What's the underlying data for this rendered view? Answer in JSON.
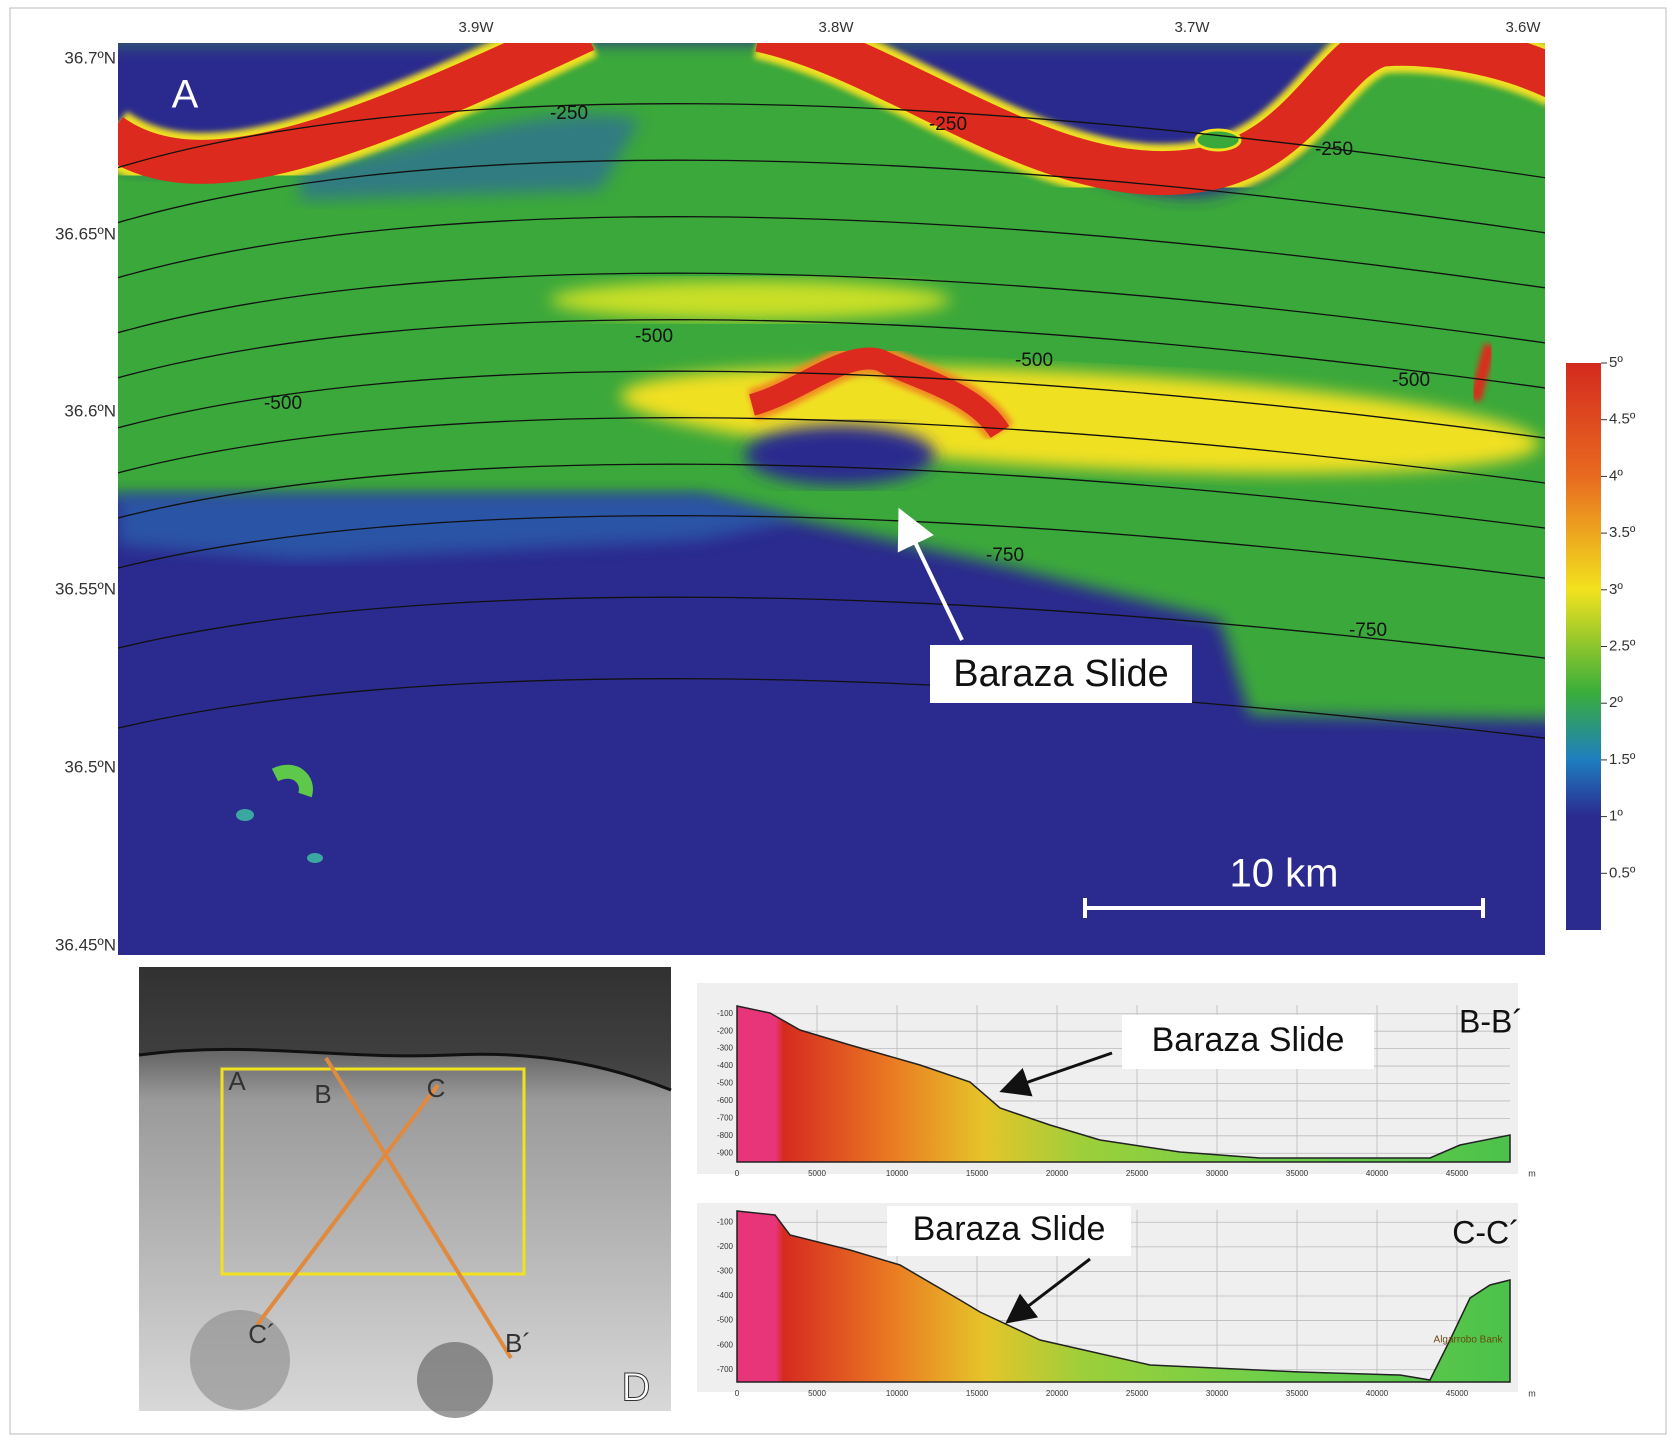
{
  "panel_a": {
    "label": "A",
    "lon_labels": [
      "3.9W",
      "3.8W",
      "3.7W",
      "3.6W"
    ],
    "lat_labels": [
      "36.7ºN",
      "36.65ºN",
      "36.6ºN",
      "36.55ºN",
      "36.5ºN",
      "36.45ºN"
    ],
    "contour_labels": [
      "-250",
      "-250",
      "-250",
      "-500",
      "-500",
      "-500",
      "-500",
      "-750",
      "-750"
    ],
    "annotation": "Baraza Slide",
    "scale_bar": "10 km"
  },
  "colorbar": {
    "ticks": [
      "5º",
      "4.5º",
      "4º",
      "3.5º",
      "3º",
      "2.5º",
      "2º",
      "1.5º",
      "1º",
      "0.5º"
    ]
  },
  "panel_d": {
    "label": "D",
    "profile_labels": [
      "A",
      "B",
      "C",
      "C´",
      "B´"
    ]
  },
  "profiles": [
    {
      "title": "B-B´",
      "annotation": "Baraza Slide",
      "yticks": [
        "-100",
        "-200",
        "-300",
        "-400",
        "-500",
        "-600",
        "-700",
        "-800",
        "-900"
      ],
      "xticks": [
        "0",
        "5000",
        "10000",
        "15000",
        "20000",
        "25000",
        "30000",
        "35000",
        "40000",
        "45000"
      ],
      "x_unit": "m"
    },
    {
      "title": "C-C´",
      "annotation": "Baraza Slide",
      "feature": "Algarrobo Bank",
      "yticks": [
        "-100",
        "-200",
        "-300",
        "-400",
        "-500",
        "-600",
        "-700"
      ],
      "xticks": [
        "0",
        "5000",
        "10000",
        "15000",
        "20000",
        "25000",
        "30000",
        "35000",
        "40000",
        "45000"
      ],
      "x_unit": "m"
    }
  ]
}
